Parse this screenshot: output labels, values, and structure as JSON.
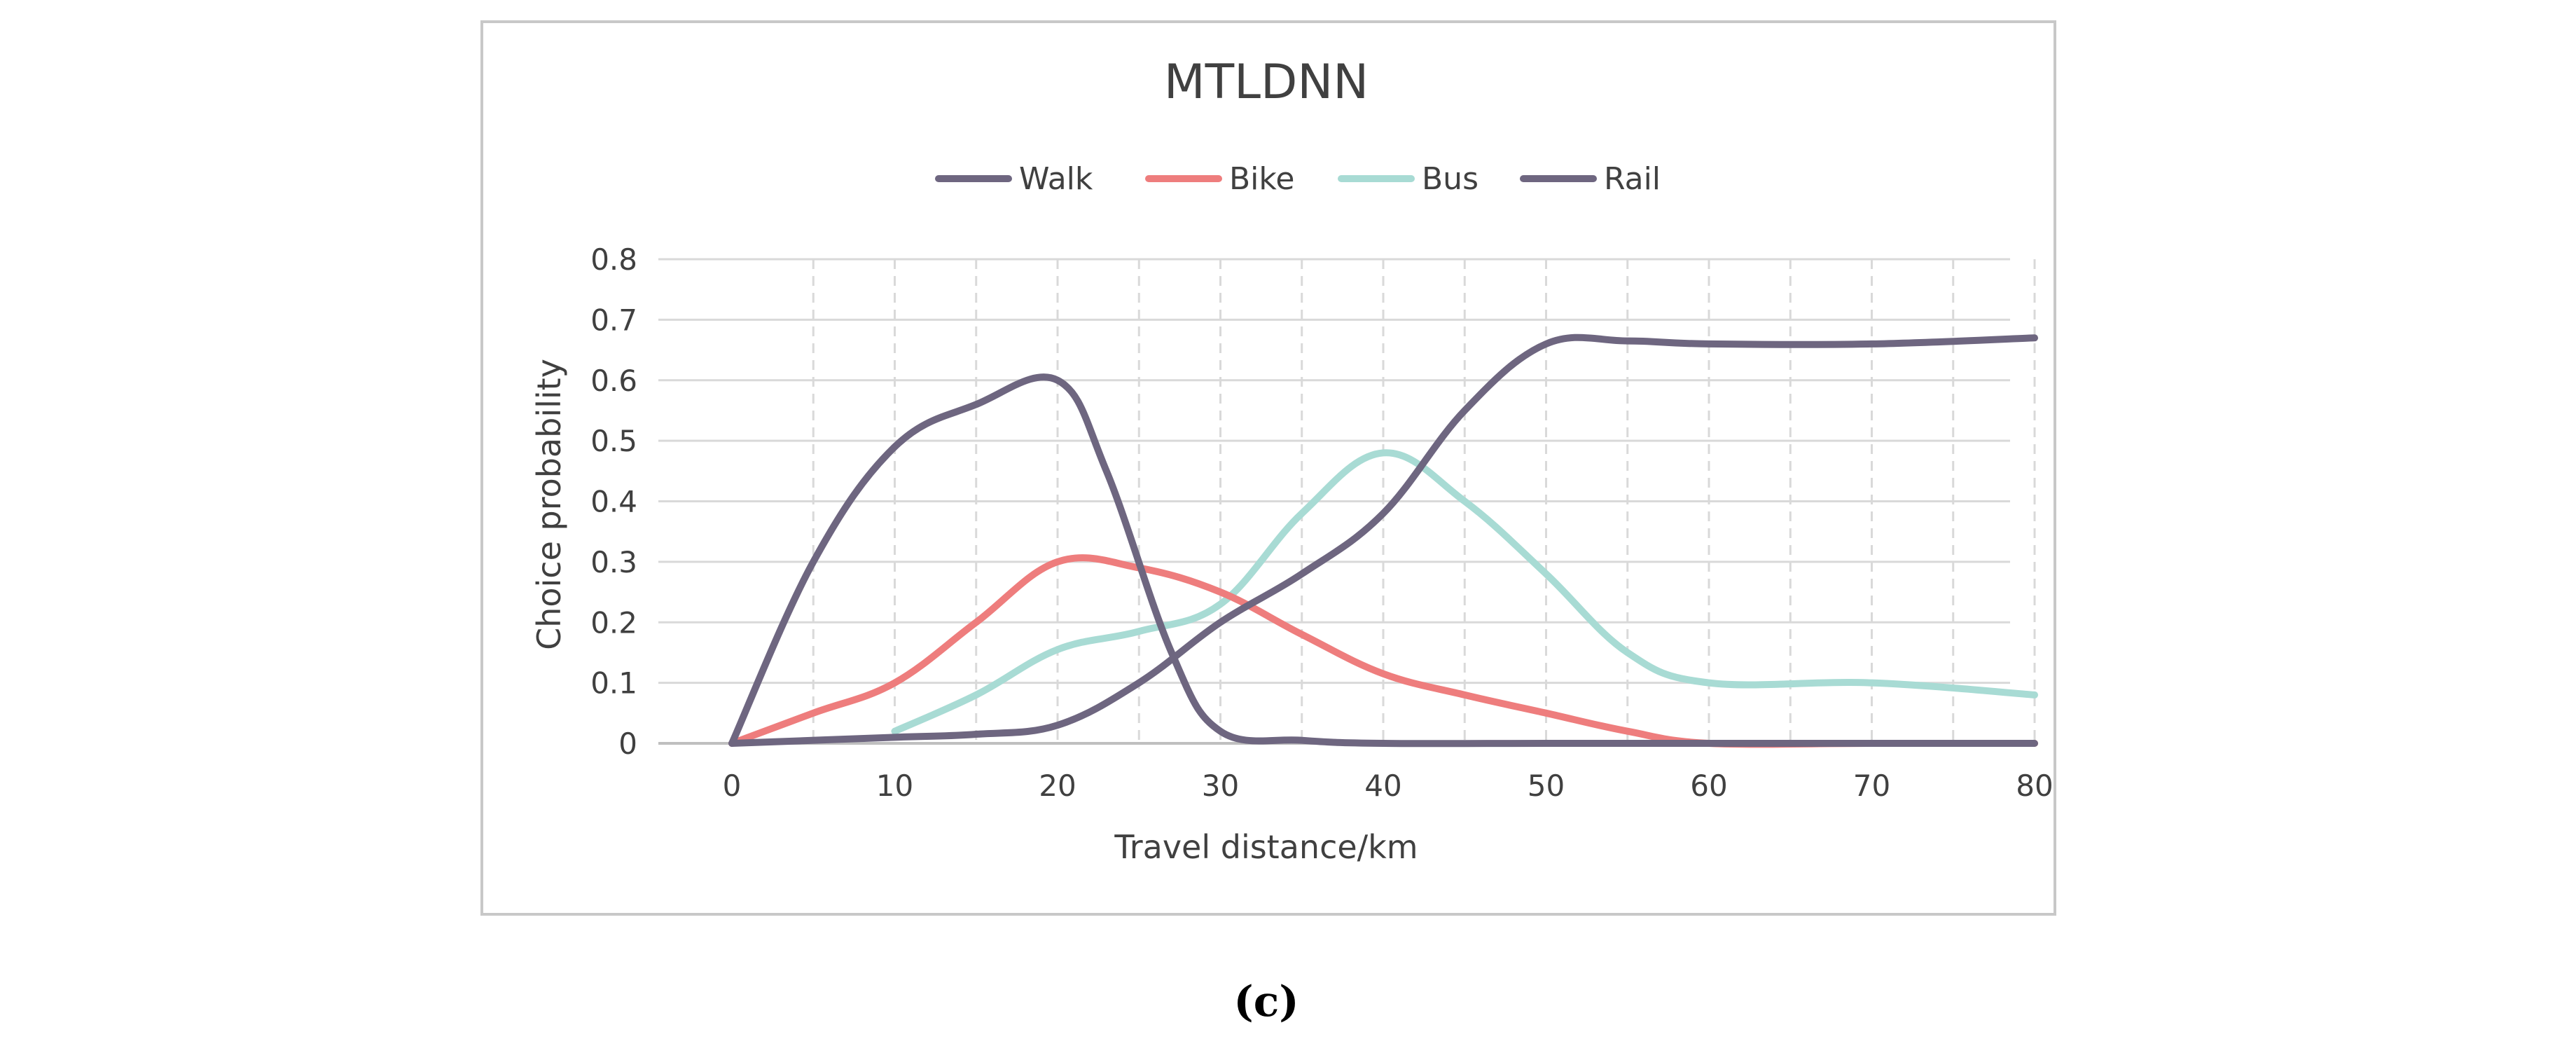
{
  "chart_data": {
    "type": "line",
    "title": "MTLDNN",
    "xlabel": "Travel distance/km",
    "ylabel": "Choice probability",
    "xlim": [
      0,
      80
    ],
    "ylim": [
      0,
      0.8
    ],
    "x_ticks": [
      "0",
      "10",
      "20",
      "30",
      "40",
      "50",
      "60",
      "70",
      "80"
    ],
    "y_ticks": [
      "0",
      "0.1",
      "0.2",
      "0.3",
      "0.4",
      "0.5",
      "0.6",
      "0.7",
      "0.8"
    ],
    "grid": true,
    "legend_position": "top",
    "series": [
      {
        "name": "Walk",
        "color": "#6e6680",
        "points": [
          [
            0,
            0
          ],
          [
            5,
            0.3
          ],
          [
            10,
            0.49
          ],
          [
            15,
            0.56
          ],
          [
            20,
            0.6
          ],
          [
            23,
            0.45
          ],
          [
            27,
            0.15
          ],
          [
            30,
            0.02
          ],
          [
            35,
            0.005
          ],
          [
            40,
            0
          ],
          [
            50,
            0
          ],
          [
            60,
            0
          ],
          [
            70,
            0
          ],
          [
            80,
            0
          ]
        ]
      },
      {
        "name": "Bike",
        "color": "#ee7d7d",
        "points": [
          [
            0,
            0
          ],
          [
            5,
            0.05
          ],
          [
            10,
            0.1
          ],
          [
            15,
            0.2
          ],
          [
            20,
            0.3
          ],
          [
            25,
            0.29
          ],
          [
            30,
            0.25
          ],
          [
            35,
            0.18
          ],
          [
            40,
            0.115
          ],
          [
            45,
            0.08
          ],
          [
            50,
            0.05
          ],
          [
            55,
            0.02
          ],
          [
            60,
            0
          ],
          [
            70,
            0
          ],
          [
            80,
            0
          ]
        ]
      },
      {
        "name": "Bus",
        "color": "#a8dbd4",
        "points": [
          [
            10,
            0.02
          ],
          [
            15,
            0.08
          ],
          [
            20,
            0.155
          ],
          [
            25,
            0.185
          ],
          [
            30,
            0.23
          ],
          [
            35,
            0.38
          ],
          [
            40,
            0.48
          ],
          [
            45,
            0.4
          ],
          [
            50,
            0.28
          ],
          [
            55,
            0.15
          ],
          [
            60,
            0.1
          ],
          [
            70,
            0.1
          ],
          [
            80,
            0.08
          ]
        ]
      },
      {
        "name": "Rail",
        "color": "#6e6680",
        "points": [
          [
            0,
            0
          ],
          [
            10,
            0.01
          ],
          [
            15,
            0.015
          ],
          [
            20,
            0.03
          ],
          [
            25,
            0.1
          ],
          [
            30,
            0.2
          ],
          [
            35,
            0.28
          ],
          [
            40,
            0.38
          ],
          [
            45,
            0.55
          ],
          [
            50,
            0.66
          ],
          [
            55,
            0.665
          ],
          [
            60,
            0.66
          ],
          [
            70,
            0.66
          ],
          [
            80,
            0.67
          ]
        ]
      }
    ]
  },
  "caption": "(c)"
}
